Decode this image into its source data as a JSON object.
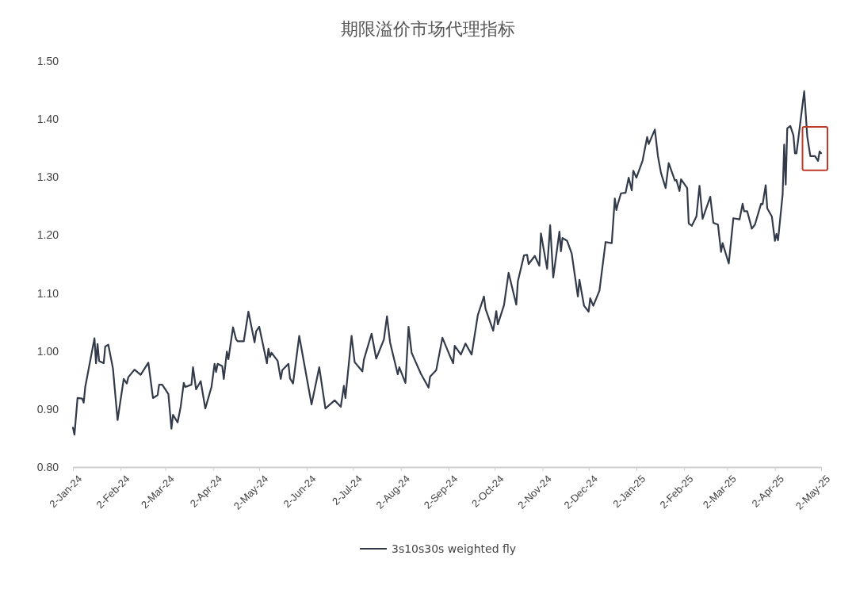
{
  "chart_data": {
    "type": "line",
    "title": "期限溢价市场代理指标",
    "x": [
      "2024-01-02",
      "2024-01-03",
      "2024-01-05",
      "2024-01-08",
      "2024-01-09",
      "2024-01-10",
      "2024-01-16",
      "2024-01-17",
      "2024-01-18",
      "2024-01-19",
      "2024-01-22",
      "2024-01-23",
      "2024-01-25",
      "2024-01-28",
      "2024-01-31",
      "2024-02-04",
      "2024-02-06",
      "2024-02-07",
      "2024-02-11",
      "2024-02-15",
      "2024-02-20",
      "2024-02-23",
      "2024-02-26",
      "2024-02-27",
      "2024-02-29",
      "2024-03-04",
      "2024-03-06",
      "2024-03-07",
      "2024-03-10",
      "2024-03-12",
      "2024-03-14",
      "2024-03-15",
      "2024-03-19",
      "2024-03-20",
      "2024-03-22",
      "2024-03-25",
      "2024-03-28",
      "2024-04-01",
      "2024-04-03",
      "2024-04-04",
      "2024-04-05",
      "2024-04-08",
      "2024-04-09",
      "2024-04-11",
      "2024-04-12",
      "2024-04-15",
      "2024-04-17",
      "2024-04-18",
      "2024-04-22",
      "2024-04-25",
      "2024-04-29",
      "2024-04-30",
      "2024-05-02",
      "2024-05-04",
      "2024-05-07",
      "2024-05-08",
      "2024-05-09",
      "2024-05-10",
      "2024-05-14",
      "2024-05-16",
      "2024-05-17",
      "2024-05-21",
      "2024-05-22",
      "2024-05-24",
      "2024-05-28",
      "2024-06-05",
      "2024-06-10",
      "2024-06-14",
      "2024-06-20",
      "2024-06-24",
      "2024-06-26",
      "2024-06-27",
      "2024-07-01",
      "2024-07-03",
      "2024-07-08",
      "2024-07-09",
      "2024-07-14",
      "2024-07-17",
      "2024-07-22",
      "2024-07-24",
      "2024-07-26",
      "2024-07-31",
      "2024-08-01",
      "2024-08-05",
      "2024-08-07",
      "2024-08-09",
      "2024-08-15",
      "2024-08-20",
      "2024-08-21",
      "2024-08-25",
      "2024-08-29",
      "2024-09-03",
      "2024-09-05",
      "2024-09-06",
      "2024-09-10",
      "2024-09-13",
      "2024-09-17",
      "2024-09-21",
      "2024-09-25",
      "2024-09-26",
      "2024-10-01",
      "2024-10-03",
      "2024-10-04",
      "2024-10-08",
      "2024-10-11",
      "2024-10-16",
      "2024-10-17",
      "2024-10-21",
      "2024-10-23",
      "2024-10-24",
      "2024-10-28",
      "2024-10-31",
      "2024-11-01",
      "2024-11-05",
      "2024-11-07",
      "2024-11-09",
      "2024-11-13",
      "2024-11-14",
      "2024-11-15",
      "2024-11-18",
      "2024-11-21",
      "2024-11-25",
      "2024-11-26",
      "2024-11-29",
      "2024-12-02",
      "2024-12-03",
      "2024-12-05",
      "2024-12-09",
      "2024-12-13",
      "2024-12-17",
      "2024-12-19",
      "2024-12-20",
      "2024-12-21",
      "2024-12-23",
      "2024-12-26",
      "2024-12-28",
      "2024-12-30",
      "2024-12-31",
      "2025-01-02",
      "2025-01-06",
      "2025-01-09",
      "2025-01-10",
      "2025-01-14",
      "2025-01-16",
      "2025-01-18",
      "2025-01-21",
      "2025-01-23",
      "2025-01-27",
      "2025-01-28",
      "2025-01-30",
      "2025-01-31",
      "2025-02-04",
      "2025-02-05",
      "2025-02-07",
      "2025-02-10",
      "2025-02-12",
      "2025-02-14",
      "2025-02-19",
      "2025-02-21",
      "2025-02-24",
      "2025-02-26",
      "2025-02-27",
      "2025-03-03",
      "2025-03-06",
      "2025-03-10",
      "2025-03-12",
      "2025-03-13",
      "2025-03-15",
      "2025-03-18",
      "2025-03-20",
      "2025-03-24",
      "2025-03-25",
      "2025-03-27",
      "2025-03-28",
      "2025-03-31",
      "2025-04-02",
      "2025-04-03",
      "2025-04-04",
      "2025-04-07",
      "2025-04-08",
      "2025-04-09",
      "2025-04-10",
      "2025-04-12",
      "2025-04-14",
      "2025-04-15",
      "2025-04-16",
      "2025-04-21",
      "2025-04-23",
      "2025-04-25",
      "2025-04-28",
      "2025-04-30",
      "2025-05-01",
      "2025-05-02"
    ],
    "series": [
      {
        "name": "3s10s30s weighted fly",
        "color": "#333b4b",
        "values": [
          0.868,
          0.856,
          0.919,
          0.918,
          0.911,
          0.938,
          1.022,
          0.979,
          1.012,
          0.983,
          0.979,
          1.008,
          1.011,
          0.97,
          0.881,
          0.952,
          0.944,
          0.955,
          0.968,
          0.959,
          0.98,
          0.919,
          0.924,
          0.942,
          0.942,
          0.926,
          0.866,
          0.89,
          0.877,
          0.904,
          0.945,
          0.938,
          0.942,
          0.972,
          0.934,
          0.948,
          0.901,
          0.938,
          0.978,
          0.964,
          0.978,
          0.974,
          0.952,
          0.999,
          0.986,
          1.041,
          1.02,
          1.017,
          1.017,
          1.068,
          1.015,
          1.034,
          1.042,
          1.017,
          0.979,
          1.004,
          0.99,
          0.997,
          0.983,
          0.952,
          0.967,
          0.978,
          0.953,
          0.944,
          1.026,
          0.908,
          0.972,
          0.901,
          0.915,
          0.904,
          0.94,
          0.919,
          1.026,
          0.981,
          0.965,
          0.985,
          1.03,
          0.987,
          1.02,
          1.06,
          1.015,
          0.96,
          0.972,
          0.945,
          1.042,
          0.997,
          0.961,
          0.937,
          0.956,
          0.967,
          1.023,
          0.991,
          0.979,
          1.009,
          0.994,
          1.013,
          0.994,
          1.062,
          1.094,
          1.073,
          1.035,
          1.069,
          1.046,
          1.079,
          1.135,
          1.08,
          1.12,
          1.165,
          1.166,
          1.15,
          1.164,
          1.147,
          1.203,
          1.142,
          1.217,
          1.127,
          1.206,
          1.172,
          1.195,
          1.19,
          1.168,
          1.094,
          1.123,
          1.078,
          1.068,
          1.091,
          1.078,
          1.104,
          1.188,
          1.186,
          1.263,
          1.243,
          1.254,
          1.272,
          1.273,
          1.299,
          1.277,
          1.311,
          1.299,
          1.328,
          1.369,
          1.357,
          1.382,
          1.336,
          1.307,
          1.281,
          1.324,
          1.294,
          1.295,
          1.276,
          1.296,
          1.281,
          1.22,
          1.216,
          1.232,
          1.285,
          1.228,
          1.266,
          1.221,
          1.218,
          1.171,
          1.186,
          1.151,
          1.229,
          1.227,
          1.254,
          1.241,
          1.241,
          1.211,
          1.218,
          1.254,
          1.253,
          1.286,
          1.246,
          1.232,
          1.19,
          1.202,
          1.191,
          1.27,
          1.356,
          1.287,
          1.384,
          1.388,
          1.372,
          1.341,
          1.341,
          1.448,
          1.37,
          1.336,
          1.336,
          1.328,
          1.344,
          1.341
        ]
      }
    ],
    "xlim": [
      "2024-01-02",
      "2025-05-02"
    ],
    "xticks": [
      {
        "value": "2024-01-02",
        "label": "2-Jan-24"
      },
      {
        "value": "2024-02-02",
        "label": "2-Feb-24"
      },
      {
        "value": "2024-03-02",
        "label": "2-Mar-24"
      },
      {
        "value": "2024-04-02",
        "label": "2-Apr-24"
      },
      {
        "value": "2024-05-02",
        "label": "2-May-24"
      },
      {
        "value": "2024-06-02",
        "label": "2-Jun-24"
      },
      {
        "value": "2024-07-02",
        "label": "2-Jul-24"
      },
      {
        "value": "2024-08-02",
        "label": "2-Aug-24"
      },
      {
        "value": "2024-09-02",
        "label": "2-Sep-24"
      },
      {
        "value": "2024-10-02",
        "label": "2-Oct-24"
      },
      {
        "value": "2024-11-02",
        "label": "2-Nov-24"
      },
      {
        "value": "2024-12-02",
        "label": "2-Dec-24"
      },
      {
        "value": "2025-01-02",
        "label": "2-Jan-25"
      },
      {
        "value": "2025-02-02",
        "label": "2-Feb-25"
      },
      {
        "value": "2025-03-02",
        "label": "2-Mar-25"
      },
      {
        "value": "2025-04-02",
        "label": "2-Apr-25"
      },
      {
        "value": "2025-05-02",
        "label": "2-May-25"
      }
    ],
    "ylim": [
      0.8,
      1.5
    ],
    "yticks": [
      {
        "value": 0.8,
        "label": "0.80"
      },
      {
        "value": 0.9,
        "label": "0.90"
      },
      {
        "value": 1.0,
        "label": "1.00"
      },
      {
        "value": 1.1,
        "label": "1.10"
      },
      {
        "value": 1.2,
        "label": "1.20"
      },
      {
        "value": 1.3,
        "label": "1.30"
      },
      {
        "value": 1.4,
        "label": "1.40"
      },
      {
        "value": 1.5,
        "label": "1.50"
      }
    ],
    "legend": "bottom",
    "marker": "none",
    "line_style": "solid"
  }
}
